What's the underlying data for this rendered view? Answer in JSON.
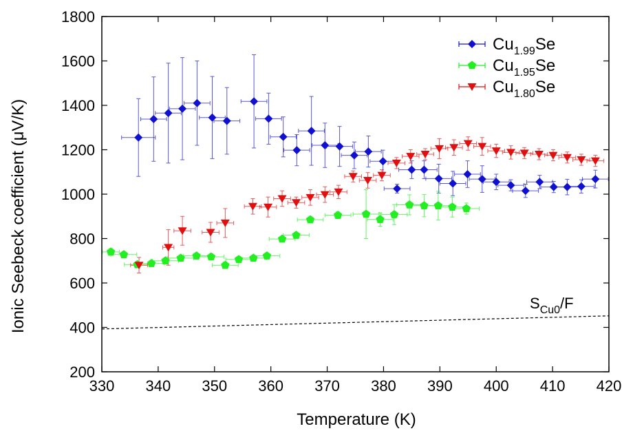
{
  "chart_data": {
    "type": "scatter",
    "xlabel": "Temperature (K)",
    "ylabel": "Ionic Seebeck coefficient (μV/K)",
    "xlim": [
      330,
      420
    ],
    "ylim": [
      200,
      1800
    ],
    "xticks": [
      330,
      340,
      350,
      360,
      370,
      380,
      390,
      400,
      410,
      420
    ],
    "yticks": [
      200,
      400,
      600,
      800,
      1000,
      1200,
      1400,
      1600,
      1800
    ],
    "grid": false,
    "legend_position": "top-right",
    "series": [
      {
        "label_base": "Cu",
        "label_sub": "1.99",
        "label_tail": "Se",
        "color": "#1010d0",
        "marker": "diamond",
        "points": [
          {
            "x": 336.5,
            "y": 1255,
            "xerr": 3.0,
            "yerr": 175
          },
          {
            "x": 339.2,
            "y": 1338,
            "xerr": 2.3,
            "yerr": 190
          },
          {
            "x": 341.8,
            "y": 1365,
            "xerr": 2.3,
            "yerr": 225
          },
          {
            "x": 344.3,
            "y": 1385,
            "xerr": 2.3,
            "yerr": 230
          },
          {
            "x": 346.9,
            "y": 1410,
            "xerr": 2.3,
            "yerr": 190
          },
          {
            "x": 349.6,
            "y": 1345,
            "xerr": 2.3,
            "yerr": 185
          },
          {
            "x": 352.2,
            "y": 1330,
            "xerr": 2.3,
            "yerr": 150
          },
          {
            "x": 357.0,
            "y": 1418,
            "xerr": 2.3,
            "yerr": 210
          },
          {
            "x": 359.6,
            "y": 1340,
            "xerr": 2.3,
            "yerr": 115
          },
          {
            "x": 362.2,
            "y": 1258,
            "xerr": 2.3,
            "yerr": 90
          },
          {
            "x": 364.6,
            "y": 1198,
            "xerr": 2.3,
            "yerr": 70
          },
          {
            "x": 367.2,
            "y": 1285,
            "xerr": 2.3,
            "yerr": 155
          },
          {
            "x": 369.6,
            "y": 1220,
            "xerr": 2.3,
            "yerr": 100
          },
          {
            "x": 372.2,
            "y": 1215,
            "xerr": 2.3,
            "yerr": 90
          },
          {
            "x": 374.8,
            "y": 1175,
            "xerr": 2.3,
            "yerr": 60
          },
          {
            "x": 377.3,
            "y": 1192,
            "xerr": 2.3,
            "yerr": 70
          },
          {
            "x": 379.9,
            "y": 1148,
            "xerr": 2.3,
            "yerr": 50
          },
          {
            "x": 382.4,
            "y": 1025,
            "xerr": 2.3,
            "yerr": 20
          },
          {
            "x": 385.0,
            "y": 1110,
            "xerr": 2.3,
            "yerr": 40
          },
          {
            "x": 387.2,
            "y": 1110,
            "xerr": 2.3,
            "yerr": 40
          },
          {
            "x": 389.8,
            "y": 1070,
            "xerr": 2.3,
            "yerr": 65
          },
          {
            "x": 392.3,
            "y": 1048,
            "xerr": 2.3,
            "yerr": 55
          },
          {
            "x": 394.9,
            "y": 1090,
            "xerr": 2.3,
            "yerr": 60
          },
          {
            "x": 397.5,
            "y": 1068,
            "xerr": 2.3,
            "yerr": 60
          },
          {
            "x": 400.0,
            "y": 1055,
            "xerr": 2.3,
            "yerr": 35
          },
          {
            "x": 402.6,
            "y": 1040,
            "xerr": 2.3,
            "yerr": 25
          },
          {
            "x": 405.2,
            "y": 1015,
            "xerr": 2.3,
            "yerr": 30
          },
          {
            "x": 407.7,
            "y": 1055,
            "xerr": 2.3,
            "yerr": 30
          },
          {
            "x": 410.2,
            "y": 1032,
            "xerr": 2.3,
            "yerr": 25
          },
          {
            "x": 412.6,
            "y": 1032,
            "xerr": 2.3,
            "yerr": 35
          },
          {
            "x": 415.1,
            "y": 1035,
            "xerr": 2.3,
            "yerr": 30
          },
          {
            "x": 417.6,
            "y": 1068,
            "xerr": 2.3,
            "yerr": 40
          }
        ]
      },
      {
        "label_base": "Cu",
        "label_sub": "1.95",
        "label_tail": "Se",
        "color": "#22ee22",
        "marker": "pentagon",
        "points": [
          {
            "x": 331.6,
            "y": 740,
            "xerr": 1.5,
            "yerr": 15
          },
          {
            "x": 333.9,
            "y": 728,
            "xerr": 2.3,
            "yerr": 12
          },
          {
            "x": 336.3,
            "y": 683,
            "xerr": 2.3,
            "yerr": 12
          },
          {
            "x": 338.8,
            "y": 688,
            "xerr": 2.3,
            "yerr": 12
          },
          {
            "x": 341.3,
            "y": 700,
            "xerr": 2.3,
            "yerr": 12
          },
          {
            "x": 344.0,
            "y": 712,
            "xerr": 2.3,
            "yerr": 12
          },
          {
            "x": 346.8,
            "y": 722,
            "xerr": 2.3,
            "yerr": 12
          },
          {
            "x": 349.4,
            "y": 718,
            "xerr": 2.3,
            "yerr": 12
          },
          {
            "x": 351.9,
            "y": 680,
            "xerr": 2.3,
            "yerr": 15
          },
          {
            "x": 354.3,
            "y": 706,
            "xerr": 2.3,
            "yerr": 12
          },
          {
            "x": 356.9,
            "y": 712,
            "xerr": 2.3,
            "yerr": 12
          },
          {
            "x": 359.3,
            "y": 722,
            "xerr": 2.3,
            "yerr": 12
          },
          {
            "x": 362.0,
            "y": 798,
            "xerr": 2.3,
            "yerr": 12
          },
          {
            "x": 364.5,
            "y": 815,
            "xerr": 2.3,
            "yerr": 12
          },
          {
            "x": 367.0,
            "y": 885,
            "xerr": 2.3,
            "yerr": 12
          },
          {
            "x": 371.9,
            "y": 905,
            "xerr": 2.3,
            "yerr": 15
          },
          {
            "x": 376.9,
            "y": 910,
            "xerr": 2.3,
            "yerr": 110
          },
          {
            "x": 379.4,
            "y": 886,
            "xerr": 2.3,
            "yerr": 30
          },
          {
            "x": 381.9,
            "y": 908,
            "xerr": 2.3,
            "yerr": 45
          },
          {
            "x": 384.6,
            "y": 952,
            "xerr": 2.3,
            "yerr": 45
          },
          {
            "x": 387.2,
            "y": 948,
            "xerr": 2.3,
            "yerr": 50
          },
          {
            "x": 389.7,
            "y": 948,
            "xerr": 2.3,
            "yerr": 65
          },
          {
            "x": 392.2,
            "y": 942,
            "xerr": 2.3,
            "yerr": 45
          },
          {
            "x": 394.7,
            "y": 935,
            "xerr": 2.3,
            "yerr": 25
          }
        ]
      },
      {
        "label_base": "Cu",
        "label_sub": "1.80",
        "label_tail": "Se",
        "color": "#e01010",
        "marker": "triangle-down",
        "points": [
          {
            "x": 336.6,
            "y": 680,
            "xerr": 1.5,
            "yerr": 35
          },
          {
            "x": 341.8,
            "y": 760,
            "xerr": 1.0,
            "yerr": 80
          },
          {
            "x": 344.3,
            "y": 835,
            "xerr": 1.5,
            "yerr": 65
          },
          {
            "x": 349.3,
            "y": 828,
            "xerr": 1.5,
            "yerr": 45
          },
          {
            "x": 351.9,
            "y": 870,
            "xerr": 1.5,
            "yerr": 65
          },
          {
            "x": 356.8,
            "y": 945,
            "xerr": 1.5,
            "yerr": 35
          },
          {
            "x": 359.5,
            "y": 942,
            "xerr": 1.5,
            "yerr": 45
          },
          {
            "x": 362.0,
            "y": 980,
            "xerr": 1.5,
            "yerr": 35
          },
          {
            "x": 364.5,
            "y": 962,
            "xerr": 1.5,
            "yerr": 25
          },
          {
            "x": 367.0,
            "y": 985,
            "xerr": 1.5,
            "yerr": 35
          },
          {
            "x": 369.6,
            "y": 998,
            "xerr": 1.5,
            "yerr": 35
          },
          {
            "x": 372.0,
            "y": 1010,
            "xerr": 1.5,
            "yerr": 30
          },
          {
            "x": 374.6,
            "y": 1080,
            "xerr": 1.5,
            "yerr": 25
          },
          {
            "x": 377.2,
            "y": 1062,
            "xerr": 1.5,
            "yerr": 35
          },
          {
            "x": 379.7,
            "y": 1085,
            "xerr": 1.5,
            "yerr": 25
          },
          {
            "x": 382.3,
            "y": 1140,
            "xerr": 1.5,
            "yerr": 25
          },
          {
            "x": 384.8,
            "y": 1170,
            "xerr": 1.5,
            "yerr": 30
          },
          {
            "x": 387.4,
            "y": 1180,
            "xerr": 1.5,
            "yerr": 25
          },
          {
            "x": 389.9,
            "y": 1205,
            "xerr": 1.5,
            "yerr": 45
          },
          {
            "x": 392.5,
            "y": 1210,
            "xerr": 1.5,
            "yerr": 35
          },
          {
            "x": 395.0,
            "y": 1228,
            "xerr": 1.5,
            "yerr": 30
          },
          {
            "x": 397.5,
            "y": 1215,
            "xerr": 1.5,
            "yerr": 40
          },
          {
            "x": 400.0,
            "y": 1195,
            "xerr": 1.5,
            "yerr": 30
          },
          {
            "x": 402.6,
            "y": 1188,
            "xerr": 1.5,
            "yerr": 30
          },
          {
            "x": 405.0,
            "y": 1185,
            "xerr": 1.5,
            "yerr": 25
          },
          {
            "x": 407.6,
            "y": 1180,
            "xerr": 1.5,
            "yerr": 25
          },
          {
            "x": 410.1,
            "y": 1175,
            "xerr": 1.5,
            "yerr": 25
          },
          {
            "x": 412.6,
            "y": 1165,
            "xerr": 1.5,
            "yerr": 25
          },
          {
            "x": 415.1,
            "y": 1155,
            "xerr": 1.5,
            "yerr": 25
          },
          {
            "x": 417.6,
            "y": 1150,
            "xerr": 1.5,
            "yerr": 25
          }
        ]
      }
    ],
    "reference_line": {
      "label_base": "S",
      "label_sub": "Cu0",
      "label_tail": "/F",
      "style": "dashed",
      "x": [
        330,
        420
      ],
      "y": [
        393,
        452
      ]
    }
  }
}
